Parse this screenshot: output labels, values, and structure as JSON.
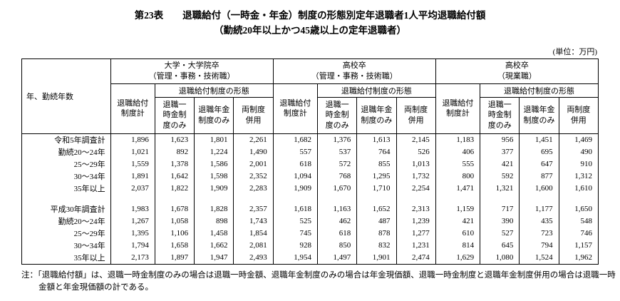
{
  "title_line1": "第23表　　退職給付（一時金・年金）制度の形態別定年退職者1人平均退職給付額",
  "title_line2": "（勤続20年以上かつ45歳以上の定年退職者）",
  "unit_label": "(単位：万円)",
  "table": {
    "corner_header": "年、勤続年数",
    "col_groups": [
      {
        "title": "大学・大学院卒\n（管理・事務・技術職）"
      },
      {
        "title": "高校卒\n（管理・事務・技術職）"
      },
      {
        "title": "高校卒\n（現業職）"
      }
    ],
    "sub_headers": {
      "total": "退職給付\n制度計",
      "form_group": "退職給付制度の形態",
      "lump_only": "退職一\n時金制\n度のみ",
      "pension_only": "退職年金\n制度のみ",
      "both": "両制度\n併用"
    },
    "rows": [
      {
        "label": "令和5年調査計",
        "values": [
          "1,896",
          "1,623",
          "1,801",
          "2,261",
          "1,682",
          "1,376",
          "1,613",
          "2,145",
          "1,183",
          "956",
          "1,451",
          "1,469"
        ]
      },
      {
        "label": "勤続20～24年",
        "values": [
          "1,021",
          "892",
          "1,224",
          "1,490",
          "557",
          "537",
          "764",
          "526",
          "406",
          "377",
          "695",
          "490"
        ]
      },
      {
        "label": "25～29年",
        "values": [
          "1,559",
          "1,378",
          "1,586",
          "2,001",
          "618",
          "572",
          "855",
          "1,013",
          "555",
          "421",
          "647",
          "910"
        ]
      },
      {
        "label": "30～34年",
        "values": [
          "1,891",
          "1,642",
          "1,598",
          "2,352",
          "1,094",
          "768",
          "1,295",
          "1,732",
          "800",
          "592",
          "877",
          "1,312"
        ]
      },
      {
        "label": "35年以上",
        "values": [
          "2,037",
          "1,822",
          "1,909",
          "2,283",
          "1,909",
          "1,670",
          "1,710",
          "2,254",
          "1,471",
          "1,321",
          "1,600",
          "1,610"
        ]
      },
      {
        "label": "",
        "separator": true,
        "values": [
          "",
          "",
          "",
          "",
          "",
          "",
          "",
          "",
          "",
          "",
          "",
          ""
        ]
      },
      {
        "label": "平成30年調査計",
        "values": [
          "1,983",
          "1,678",
          "1,828",
          "2,357",
          "1,618",
          "1,163",
          "1,652",
          "2,313",
          "1,159",
          "717",
          "1,177",
          "1,650"
        ]
      },
      {
        "label": "勤続20～24年",
        "values": [
          "1,267",
          "1,058",
          "898",
          "1,743",
          "525",
          "462",
          "487",
          "1,239",
          "421",
          "390",
          "435",
          "548"
        ]
      },
      {
        "label": "25～29年",
        "values": [
          "1,395",
          "1,106",
          "1,458",
          "1,854",
          "745",
          "618",
          "878",
          "1,277",
          "610",
          "527",
          "723",
          "746"
        ]
      },
      {
        "label": "30～34年",
        "values": [
          "1,794",
          "1,658",
          "1,662",
          "2,081",
          "928",
          "850",
          "832",
          "1,231",
          "814",
          "645",
          "794",
          "1,157"
        ]
      },
      {
        "label": "35年以上",
        "values": [
          "2,173",
          "1,897",
          "1,947",
          "2,493",
          "1,954",
          "1,497",
          "1,901",
          "2,474",
          "1,629",
          "1,080",
          "1,524",
          "1,962"
        ]
      }
    ]
  },
  "note": "注：「退職給付額」は、退職一時金制度のみの場合は退職一時金額、退職年金制度のみの場合は年金現価額、退職一時金制度と退職年金制度併用の場合は退職一時金額と年金現価額の計である。"
}
